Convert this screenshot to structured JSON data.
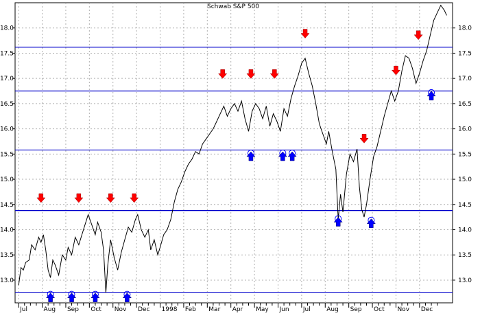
{
  "chart_data": {
    "type": "line",
    "title": "Schwab S&P 500",
    "ylim": [
      12.55,
      18.5
    ],
    "y_ticks": [
      13.0,
      13.5,
      14.0,
      14.5,
      15.0,
      15.5,
      16.0,
      16.5,
      17.0,
      17.5,
      18.0
    ],
    "y_tick_labels": [
      "13.0",
      "13.5",
      "14.0",
      "14.5",
      "15.0",
      "15.5",
      "16.0",
      "16.5",
      "17.0",
      "17.5",
      "18.0"
    ],
    "x_ticks": [
      {
        "month": 0,
        "label": "Jul"
      },
      {
        "month": 1,
        "label": "Aug"
      },
      {
        "month": 2,
        "label": "Sep"
      },
      {
        "month": 3,
        "label": "Oct"
      },
      {
        "month": 4,
        "label": "Nov"
      },
      {
        "month": 5,
        "label": "Dec"
      },
      {
        "month": 6,
        "label": "1998"
      },
      {
        "month": 7,
        "label": "Feb"
      },
      {
        "month": 8,
        "label": "Mar"
      },
      {
        "month": 9,
        "label": "Apr"
      },
      {
        "month": 10,
        "label": "May"
      },
      {
        "month": 11,
        "label": "Jun"
      },
      {
        "month": 12,
        "label": "Jul"
      },
      {
        "month": 13,
        "label": "Aug"
      },
      {
        "month": 14,
        "label": "Sep"
      },
      {
        "month": 15,
        "label": "Oct"
      },
      {
        "month": 16,
        "label": "Nov"
      },
      {
        "month": 17,
        "label": "Dec"
      }
    ],
    "xlim_months": [
      -0.15,
      18.4
    ],
    "horizontal_levels": [
      12.76,
      14.38,
      15.58,
      16.75,
      17.62
    ],
    "series": [
      {
        "values": [
          [
            0.0,
            12.9
          ],
          [
            0.1,
            13.25
          ],
          [
            0.2,
            13.2
          ],
          [
            0.3,
            13.35
          ],
          [
            0.45,
            13.4
          ],
          [
            0.55,
            13.7
          ],
          [
            0.7,
            13.6
          ],
          [
            0.85,
            13.85
          ],
          [
            0.95,
            13.75
          ],
          [
            1.05,
            13.9
          ],
          [
            1.15,
            13.6
          ],
          [
            1.25,
            13.2
          ],
          [
            1.35,
            13.05
          ],
          [
            1.45,
            13.4
          ],
          [
            1.55,
            13.3
          ],
          [
            1.7,
            13.1
          ],
          [
            1.85,
            13.5
          ],
          [
            2.0,
            13.4
          ],
          [
            2.1,
            13.65
          ],
          [
            2.25,
            13.5
          ],
          [
            2.4,
            13.85
          ],
          [
            2.55,
            13.7
          ],
          [
            2.75,
            14.0
          ],
          [
            2.95,
            14.3
          ],
          [
            3.1,
            14.1
          ],
          [
            3.25,
            13.9
          ],
          [
            3.35,
            14.15
          ],
          [
            3.5,
            13.95
          ],
          [
            3.6,
            13.6
          ],
          [
            3.7,
            12.75
          ],
          [
            3.78,
            13.3
          ],
          [
            3.9,
            13.8
          ],
          [
            4.05,
            13.45
          ],
          [
            4.2,
            13.2
          ],
          [
            4.35,
            13.55
          ],
          [
            4.5,
            13.8
          ],
          [
            4.65,
            14.05
          ],
          [
            4.8,
            13.95
          ],
          [
            4.95,
            14.2
          ],
          [
            5.05,
            14.3
          ],
          [
            5.2,
            14.0
          ],
          [
            5.35,
            13.85
          ],
          [
            5.5,
            14.0
          ],
          [
            5.6,
            13.6
          ],
          [
            5.75,
            13.8
          ],
          [
            5.9,
            13.5
          ],
          [
            6.0,
            13.65
          ],
          [
            6.15,
            13.9
          ],
          [
            6.3,
            14.0
          ],
          [
            6.45,
            14.2
          ],
          [
            6.6,
            14.55
          ],
          [
            6.75,
            14.8
          ],
          [
            6.9,
            14.95
          ],
          [
            7.05,
            15.15
          ],
          [
            7.2,
            15.3
          ],
          [
            7.35,
            15.4
          ],
          [
            7.5,
            15.55
          ],
          [
            7.65,
            15.5
          ],
          [
            7.8,
            15.7
          ],
          [
            7.95,
            15.8
          ],
          [
            8.1,
            15.9
          ],
          [
            8.25,
            16.0
          ],
          [
            8.4,
            16.15
          ],
          [
            8.55,
            16.3
          ],
          [
            8.7,
            16.45
          ],
          [
            8.85,
            16.25
          ],
          [
            9.0,
            16.4
          ],
          [
            9.15,
            16.5
          ],
          [
            9.3,
            16.35
          ],
          [
            9.45,
            16.55
          ],
          [
            9.6,
            16.2
          ],
          [
            9.75,
            15.95
          ],
          [
            9.9,
            16.35
          ],
          [
            10.05,
            16.5
          ],
          [
            10.2,
            16.4
          ],
          [
            10.35,
            16.2
          ],
          [
            10.5,
            16.45
          ],
          [
            10.65,
            16.05
          ],
          [
            10.8,
            16.3
          ],
          [
            10.95,
            16.15
          ],
          [
            11.1,
            15.95
          ],
          [
            11.25,
            16.4
          ],
          [
            11.4,
            16.25
          ],
          [
            11.55,
            16.6
          ],
          [
            11.7,
            16.85
          ],
          [
            11.85,
            17.05
          ],
          [
            12.0,
            17.3
          ],
          [
            12.15,
            17.4
          ],
          [
            12.3,
            17.1
          ],
          [
            12.45,
            16.85
          ],
          [
            12.6,
            16.5
          ],
          [
            12.75,
            16.1
          ],
          [
            12.9,
            15.9
          ],
          [
            13.05,
            15.7
          ],
          [
            13.15,
            15.95
          ],
          [
            13.3,
            15.55
          ],
          [
            13.45,
            15.2
          ],
          [
            13.55,
            14.2
          ],
          [
            13.65,
            14.7
          ],
          [
            13.75,
            14.35
          ],
          [
            13.9,
            15.1
          ],
          [
            14.05,
            15.5
          ],
          [
            14.2,
            15.35
          ],
          [
            14.35,
            15.6
          ],
          [
            14.45,
            14.85
          ],
          [
            14.55,
            14.4
          ],
          [
            14.65,
            14.25
          ],
          [
            14.75,
            14.5
          ],
          [
            14.9,
            15.0
          ],
          [
            15.05,
            15.45
          ],
          [
            15.2,
            15.65
          ],
          [
            15.35,
            15.95
          ],
          [
            15.5,
            16.25
          ],
          [
            15.65,
            16.5
          ],
          [
            15.8,
            16.75
          ],
          [
            15.95,
            16.55
          ],
          [
            16.1,
            16.75
          ],
          [
            16.25,
            17.15
          ],
          [
            16.4,
            17.45
          ],
          [
            16.55,
            17.4
          ],
          [
            16.7,
            17.2
          ],
          [
            16.85,
            16.9
          ],
          [
            17.0,
            17.1
          ],
          [
            17.15,
            17.35
          ],
          [
            17.3,
            17.55
          ],
          [
            17.45,
            17.85
          ],
          [
            17.6,
            18.15
          ],
          [
            17.75,
            18.3
          ],
          [
            17.9,
            18.45
          ],
          [
            18.05,
            18.35
          ],
          [
            18.15,
            18.25
          ]
        ]
      }
    ],
    "sell_signals": [
      {
        "x": 0.95,
        "y": 14.62
      },
      {
        "x": 2.55,
        "y": 14.62
      },
      {
        "x": 3.9,
        "y": 14.62
      },
      {
        "x": 4.9,
        "y": 14.62
      },
      {
        "x": 8.65,
        "y": 17.08
      },
      {
        "x": 9.85,
        "y": 17.08
      },
      {
        "x": 10.85,
        "y": 17.08
      },
      {
        "x": 12.15,
        "y": 17.88
      },
      {
        "x": 14.65,
        "y": 15.8
      },
      {
        "x": 16.0,
        "y": 17.15
      },
      {
        "x": 16.95,
        "y": 17.85
      }
    ],
    "buy_signals": [
      {
        "x": 1.35,
        "y": 12.65
      },
      {
        "x": 2.25,
        "y": 12.65
      },
      {
        "x": 3.25,
        "y": 12.65
      },
      {
        "x": 4.6,
        "y": 12.65
      },
      {
        "x": 9.85,
        "y": 15.45
      },
      {
        "x": 11.2,
        "y": 15.45
      },
      {
        "x": 11.6,
        "y": 15.45
      },
      {
        "x": 13.55,
        "y": 14.15
      },
      {
        "x": 14.95,
        "y": 14.12
      },
      {
        "x": 17.5,
        "y": 16.65
      }
    ],
    "colors": {
      "price_line": "#000000",
      "level_lines": "#0000cc",
      "sell_arrow": "#ff0000",
      "buy_arrow": "#0000ff",
      "grid": "#b0b0b0"
    },
    "grid": true
  }
}
